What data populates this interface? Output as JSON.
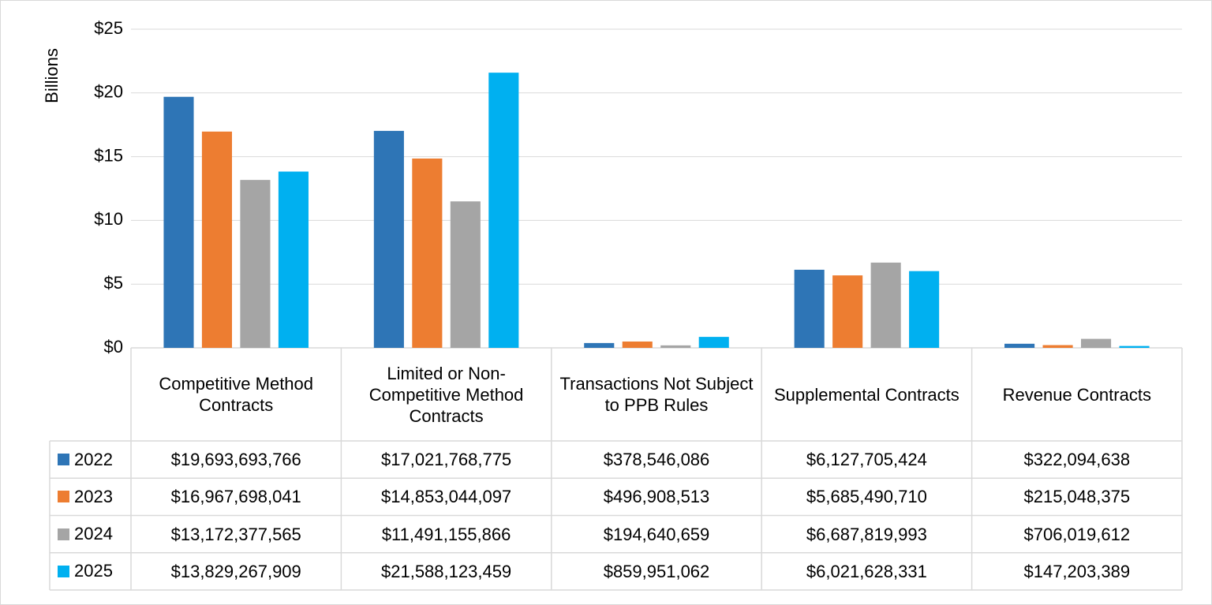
{
  "chart_data": {
    "type": "bar",
    "y_label": "Billions",
    "categories": [
      "Competitive Method Contracts",
      "Limited or Non-Competitive Method Contracts",
      "Transactions Not Subject to PPB Rules",
      "Supplemental Contracts",
      "Revenue Contracts"
    ],
    "series": [
      {
        "name": "2022",
        "color": "#2e75b6",
        "values": [
          19.693693766,
          17.021768775,
          0.378546086,
          6.127705424,
          0.322094638
        ],
        "value_labels": [
          "$19,693,693,766",
          "$17,021,768,775",
          "$378,546,086",
          "$6,127,705,424",
          "$322,094,638"
        ]
      },
      {
        "name": "2023",
        "color": "#ed7d31",
        "values": [
          16.967698041,
          14.853044097,
          0.496908513,
          5.68549071,
          0.215048375
        ],
        "value_labels": [
          "$16,967,698,041",
          "$14,853,044,097",
          "$496,908,513",
          "$5,685,490,710",
          "$215,048,375"
        ]
      },
      {
        "name": "2024",
        "color": "#a5a5a5",
        "values": [
          13.172377565,
          11.491155866,
          0.194640659,
          6.687819993,
          0.706019612
        ],
        "value_labels": [
          "$13,172,377,565",
          "$11,491,155,866",
          "$194,640,659",
          "$6,687,819,993",
          "$706,019,612"
        ]
      },
      {
        "name": "2025",
        "color": "#00b0f0",
        "values": [
          13.829267909,
          21.588123459,
          0.859951062,
          6.021628331,
          0.147203389
        ],
        "value_labels": [
          "$13,829,267,909",
          "$21,588,123,459",
          "$859,951,062",
          "$6,021,628,331",
          "$147,203,389"
        ]
      }
    ],
    "ylim": [
      0,
      25
    ],
    "yticks": [
      {
        "value": 0,
        "label": "$0"
      },
      {
        "value": 5,
        "label": "$5"
      },
      {
        "value": 10,
        "label": "$10"
      },
      {
        "value": 15,
        "label": "$15"
      },
      {
        "value": 20,
        "label": "$20"
      },
      {
        "value": 25,
        "label": "$25"
      }
    ],
    "grid": true
  }
}
